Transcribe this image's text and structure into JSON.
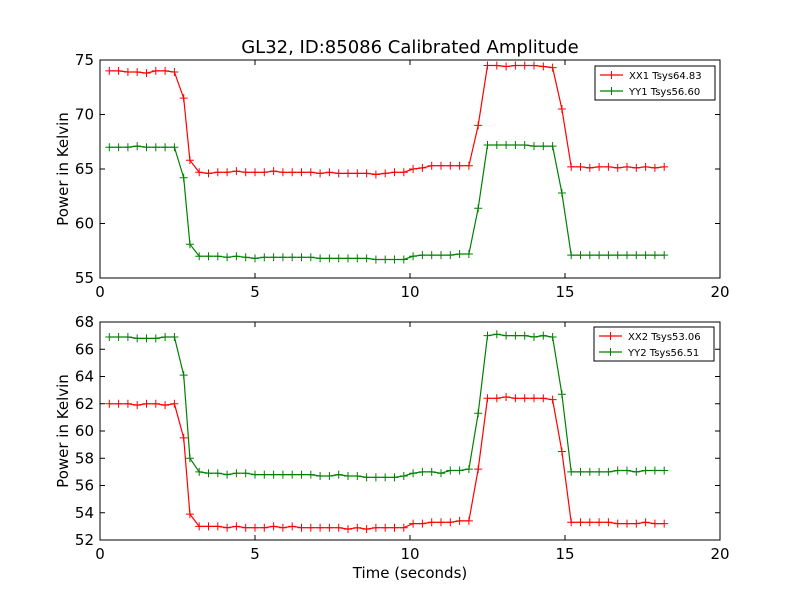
{
  "figure": {
    "title": "GL32, ID:85086 Calibrated Amplitude"
  },
  "chart_data": [
    {
      "type": "line",
      "xlabel": "",
      "ylabel": "Power in Kelvin",
      "xlim": [
        0,
        20
      ],
      "ylim": [
        55,
        75
      ],
      "xticks": [
        0,
        5,
        10,
        15,
        20
      ],
      "yticks": [
        55,
        60,
        65,
        70,
        75
      ],
      "grid": false,
      "legend_position": "top-right",
      "x": [
        0.3,
        0.6,
        0.9,
        1.2,
        1.5,
        1.8,
        2.1,
        2.4,
        2.7,
        2.9,
        3.2,
        3.5,
        3.8,
        4.1,
        4.4,
        4.7,
        5.0,
        5.3,
        5.6,
        5.9,
        6.2,
        6.5,
        6.8,
        7.1,
        7.4,
        7.7,
        8.0,
        8.3,
        8.6,
        8.9,
        9.2,
        9.5,
        9.8,
        10.1,
        10.4,
        10.7,
        11.0,
        11.3,
        11.6,
        11.9,
        12.2,
        12.5,
        12.8,
        13.1,
        13.4,
        13.7,
        14.0,
        14.3,
        14.6,
        14.9,
        15.2,
        15.5,
        15.8,
        16.1,
        16.4,
        16.7,
        17.0,
        17.3,
        17.6,
        17.9,
        18.2
      ],
      "series": [
        {
          "name": "XX1 Tsys64.83",
          "color": "#ff0000",
          "values": [
            74.0,
            74.0,
            73.9,
            73.9,
            73.8,
            74.0,
            74.0,
            73.9,
            71.5,
            65.8,
            64.7,
            64.6,
            64.7,
            64.7,
            64.8,
            64.7,
            64.7,
            64.7,
            64.8,
            64.7,
            64.7,
            64.7,
            64.7,
            64.6,
            64.7,
            64.6,
            64.6,
            64.6,
            64.6,
            64.5,
            64.6,
            64.7,
            64.7,
            65.0,
            65.1,
            65.3,
            65.3,
            65.3,
            65.3,
            65.3,
            69.0,
            74.5,
            74.5,
            74.4,
            74.5,
            74.5,
            74.5,
            74.4,
            74.3,
            70.5,
            65.2,
            65.2,
            65.1,
            65.2,
            65.2,
            65.1,
            65.2,
            65.1,
            65.2,
            65.1,
            65.2
          ]
        },
        {
          "name": "YY1 Tsys56.60",
          "color": "#008000",
          "values": [
            67.0,
            67.0,
            67.0,
            67.1,
            67.0,
            67.0,
            67.0,
            67.0,
            64.2,
            58.1,
            57.0,
            57.0,
            57.0,
            56.9,
            57.0,
            56.9,
            56.8,
            56.9,
            56.9,
            56.9,
            56.9,
            56.9,
            56.9,
            56.8,
            56.8,
            56.8,
            56.8,
            56.8,
            56.8,
            56.7,
            56.7,
            56.7,
            56.7,
            57.0,
            57.1,
            57.1,
            57.1,
            57.1,
            57.2,
            57.2,
            61.4,
            67.2,
            67.2,
            67.2,
            67.2,
            67.2,
            67.1,
            67.1,
            67.1,
            62.8,
            57.1,
            57.1,
            57.1,
            57.1,
            57.1,
            57.1,
            57.1,
            57.1,
            57.1,
            57.1,
            57.1
          ]
        }
      ]
    },
    {
      "type": "line",
      "xlabel": "Time (seconds)",
      "ylabel": "Power in Kelvin",
      "xlim": [
        0,
        20
      ],
      "ylim": [
        52,
        68
      ],
      "xticks": [
        0,
        5,
        10,
        15,
        20
      ],
      "yticks": [
        52,
        54,
        56,
        58,
        60,
        62,
        64,
        66,
        68
      ],
      "grid": false,
      "legend_position": "top-right",
      "x": [
        0.3,
        0.6,
        0.9,
        1.2,
        1.5,
        1.8,
        2.1,
        2.4,
        2.7,
        2.9,
        3.2,
        3.5,
        3.8,
        4.1,
        4.4,
        4.7,
        5.0,
        5.3,
        5.6,
        5.9,
        6.2,
        6.5,
        6.8,
        7.1,
        7.4,
        7.7,
        8.0,
        8.3,
        8.6,
        8.9,
        9.2,
        9.5,
        9.8,
        10.1,
        10.4,
        10.7,
        11.0,
        11.3,
        11.6,
        11.9,
        12.2,
        12.5,
        12.8,
        13.1,
        13.4,
        13.7,
        14.0,
        14.3,
        14.6,
        14.9,
        15.2,
        15.5,
        15.8,
        16.1,
        16.4,
        16.7,
        17.0,
        17.3,
        17.6,
        17.9,
        18.2
      ],
      "series": [
        {
          "name": "XX2 Tsys53.06",
          "color": "#ff0000",
          "values": [
            62.0,
            62.0,
            62.0,
            61.9,
            62.0,
            62.0,
            61.9,
            62.0,
            59.5,
            53.9,
            53.0,
            53.0,
            53.0,
            52.9,
            53.0,
            52.9,
            52.9,
            52.9,
            53.0,
            52.9,
            53.0,
            52.9,
            52.9,
            52.9,
            52.9,
            52.9,
            52.8,
            52.9,
            52.8,
            52.9,
            52.9,
            52.9,
            52.9,
            53.2,
            53.2,
            53.3,
            53.3,
            53.3,
            53.4,
            53.4,
            57.2,
            62.4,
            62.4,
            62.5,
            62.4,
            62.4,
            62.4,
            62.4,
            62.3,
            58.5,
            53.3,
            53.3,
            53.3,
            53.3,
            53.3,
            53.2,
            53.2,
            53.2,
            53.3,
            53.2,
            53.2
          ]
        },
        {
          "name": "YY2 Tsys56.51",
          "color": "#008000",
          "values": [
            66.9,
            66.9,
            66.9,
            66.8,
            66.8,
            66.8,
            66.9,
            66.9,
            64.1,
            58.0,
            57.0,
            56.9,
            56.9,
            56.8,
            56.9,
            56.9,
            56.8,
            56.8,
            56.8,
            56.8,
            56.8,
            56.8,
            56.8,
            56.7,
            56.7,
            56.8,
            56.7,
            56.7,
            56.6,
            56.6,
            56.6,
            56.6,
            56.7,
            56.9,
            57.0,
            57.0,
            56.9,
            57.1,
            57.1,
            57.2,
            61.3,
            67.0,
            67.1,
            67.0,
            67.0,
            67.0,
            66.9,
            67.0,
            66.9,
            62.7,
            57.0,
            57.0,
            57.0,
            57.0,
            57.0,
            57.1,
            57.1,
            57.0,
            57.1,
            57.1,
            57.1
          ]
        }
      ]
    }
  ]
}
